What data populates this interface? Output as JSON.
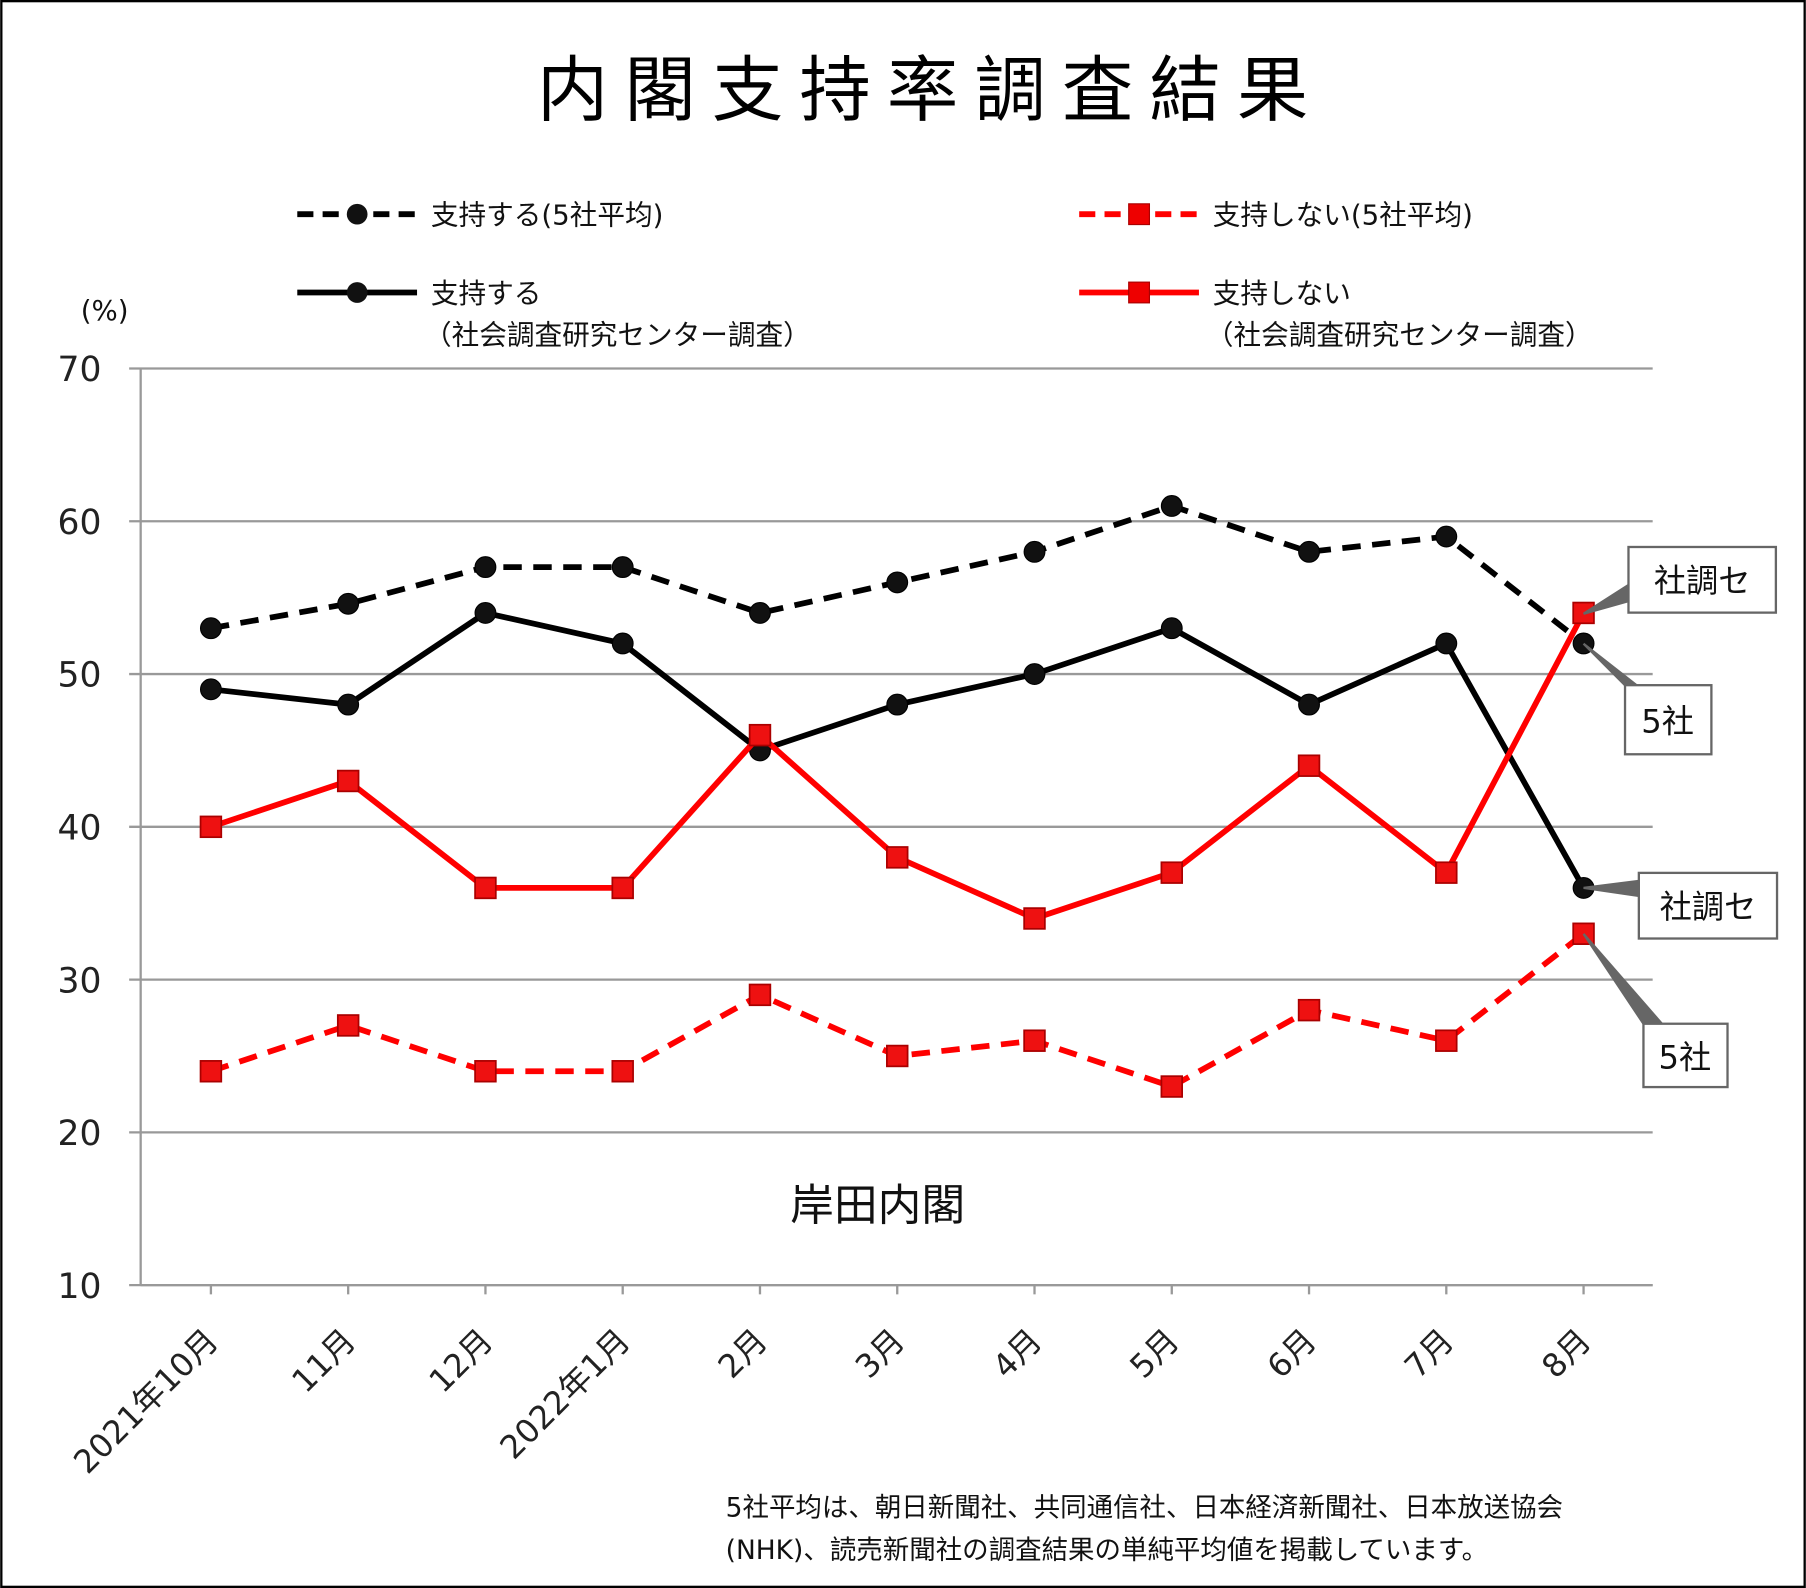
{
  "chart_data": {
    "type": "line",
    "title": "内閣支持率調査結果",
    "ylabel": "(%)",
    "ylim": [
      10,
      70
    ],
    "yticks": [
      "70",
      "60",
      "50",
      "40",
      "30",
      "20",
      "10"
    ],
    "grid": true,
    "legend_position": "top",
    "categories": [
      "2021年10月",
      "11月",
      "12月",
      "2022年1月",
      "2月",
      "3月",
      "4月",
      "5月",
      "6月",
      "7月",
      "8月"
    ],
    "series": [
      {
        "name": "支持する(5社平均)",
        "style": "dashed",
        "marker": "circle",
        "color": "#000000",
        "values": [
          53,
          54.6,
          57,
          57,
          54,
          56,
          58,
          61,
          58,
          59,
          52
        ]
      },
      {
        "name": "支持しない(5社平均)",
        "style": "dashed",
        "marker": "square",
        "color": "#ff0000",
        "values": [
          24,
          27,
          24,
          24,
          29,
          25,
          26,
          23,
          28,
          26,
          33
        ]
      },
      {
        "name": "支持する",
        "name2": "（社会調査研究センター調査）",
        "style": "solid",
        "marker": "circle",
        "color": "#000000",
        "values": [
          49,
          48,
          54,
          52,
          45,
          48,
          50,
          53,
          48,
          52,
          36
        ]
      },
      {
        "name": "支持しない",
        "name2": "（社会調査研究センター調査）",
        "style": "solid",
        "marker": "square",
        "color": "#ff0000",
        "values": [
          40,
          43,
          36,
          36,
          46,
          38,
          34,
          37,
          44,
          37,
          54
        ]
      }
    ],
    "annotations": {
      "period": "岸田内閣",
      "callout_red_solid": "社調セ",
      "callout_black_dashed": "5社",
      "callout_black_solid": "社調セ",
      "callout_red_dashed": "5社"
    },
    "footnote": [
      "5社平均は、朝日新聞社、共同通信社、日本経済新聞社、日本放送協会",
      "(NHK)、読売新聞社の調査結果の単純平均値を掲載しています。"
    ]
  }
}
